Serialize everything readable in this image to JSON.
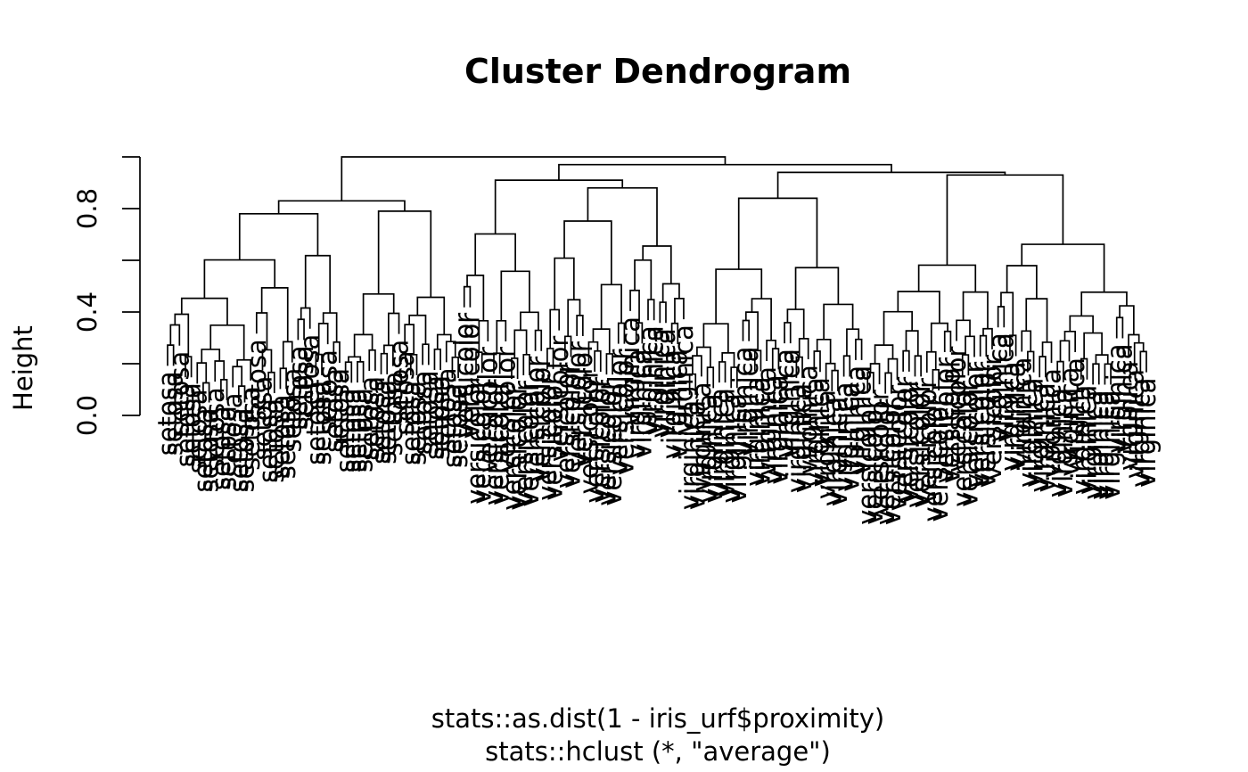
{
  "chart_data": {
    "type": "dendrogram",
    "title": "Cluster Dendrogram",
    "ylabel": "Height",
    "xlabel": "stats::as.dist(1 - iris_urf$proximity)",
    "sub": "stats::hclust (*, \"average\")",
    "ylim": [
      0,
      1
    ],
    "yticks": [
      0.0,
      0.2,
      0.4,
      0.6,
      0.8,
      1.0
    ],
    "ytick_labels": [
      "0.0",
      "0.4",
      "0.8"
    ],
    "ytick_label_values": [
      0.0,
      0.4,
      0.8
    ],
    "species": [
      "setosa",
      "versicolor",
      "virginica"
    ],
    "group_counts": [
      50,
      50,
      50
    ],
    "merge_heights": {
      "root": 1.0,
      "setosa": 0.83,
      "nonsetosa": 0.97,
      "mixed_left": 0.91,
      "mixed_right": 0.94,
      "setosa_subclusters": [
        0.78,
        0.68,
        0.62,
        0.51,
        0.55,
        0.48
      ]
    }
  }
}
